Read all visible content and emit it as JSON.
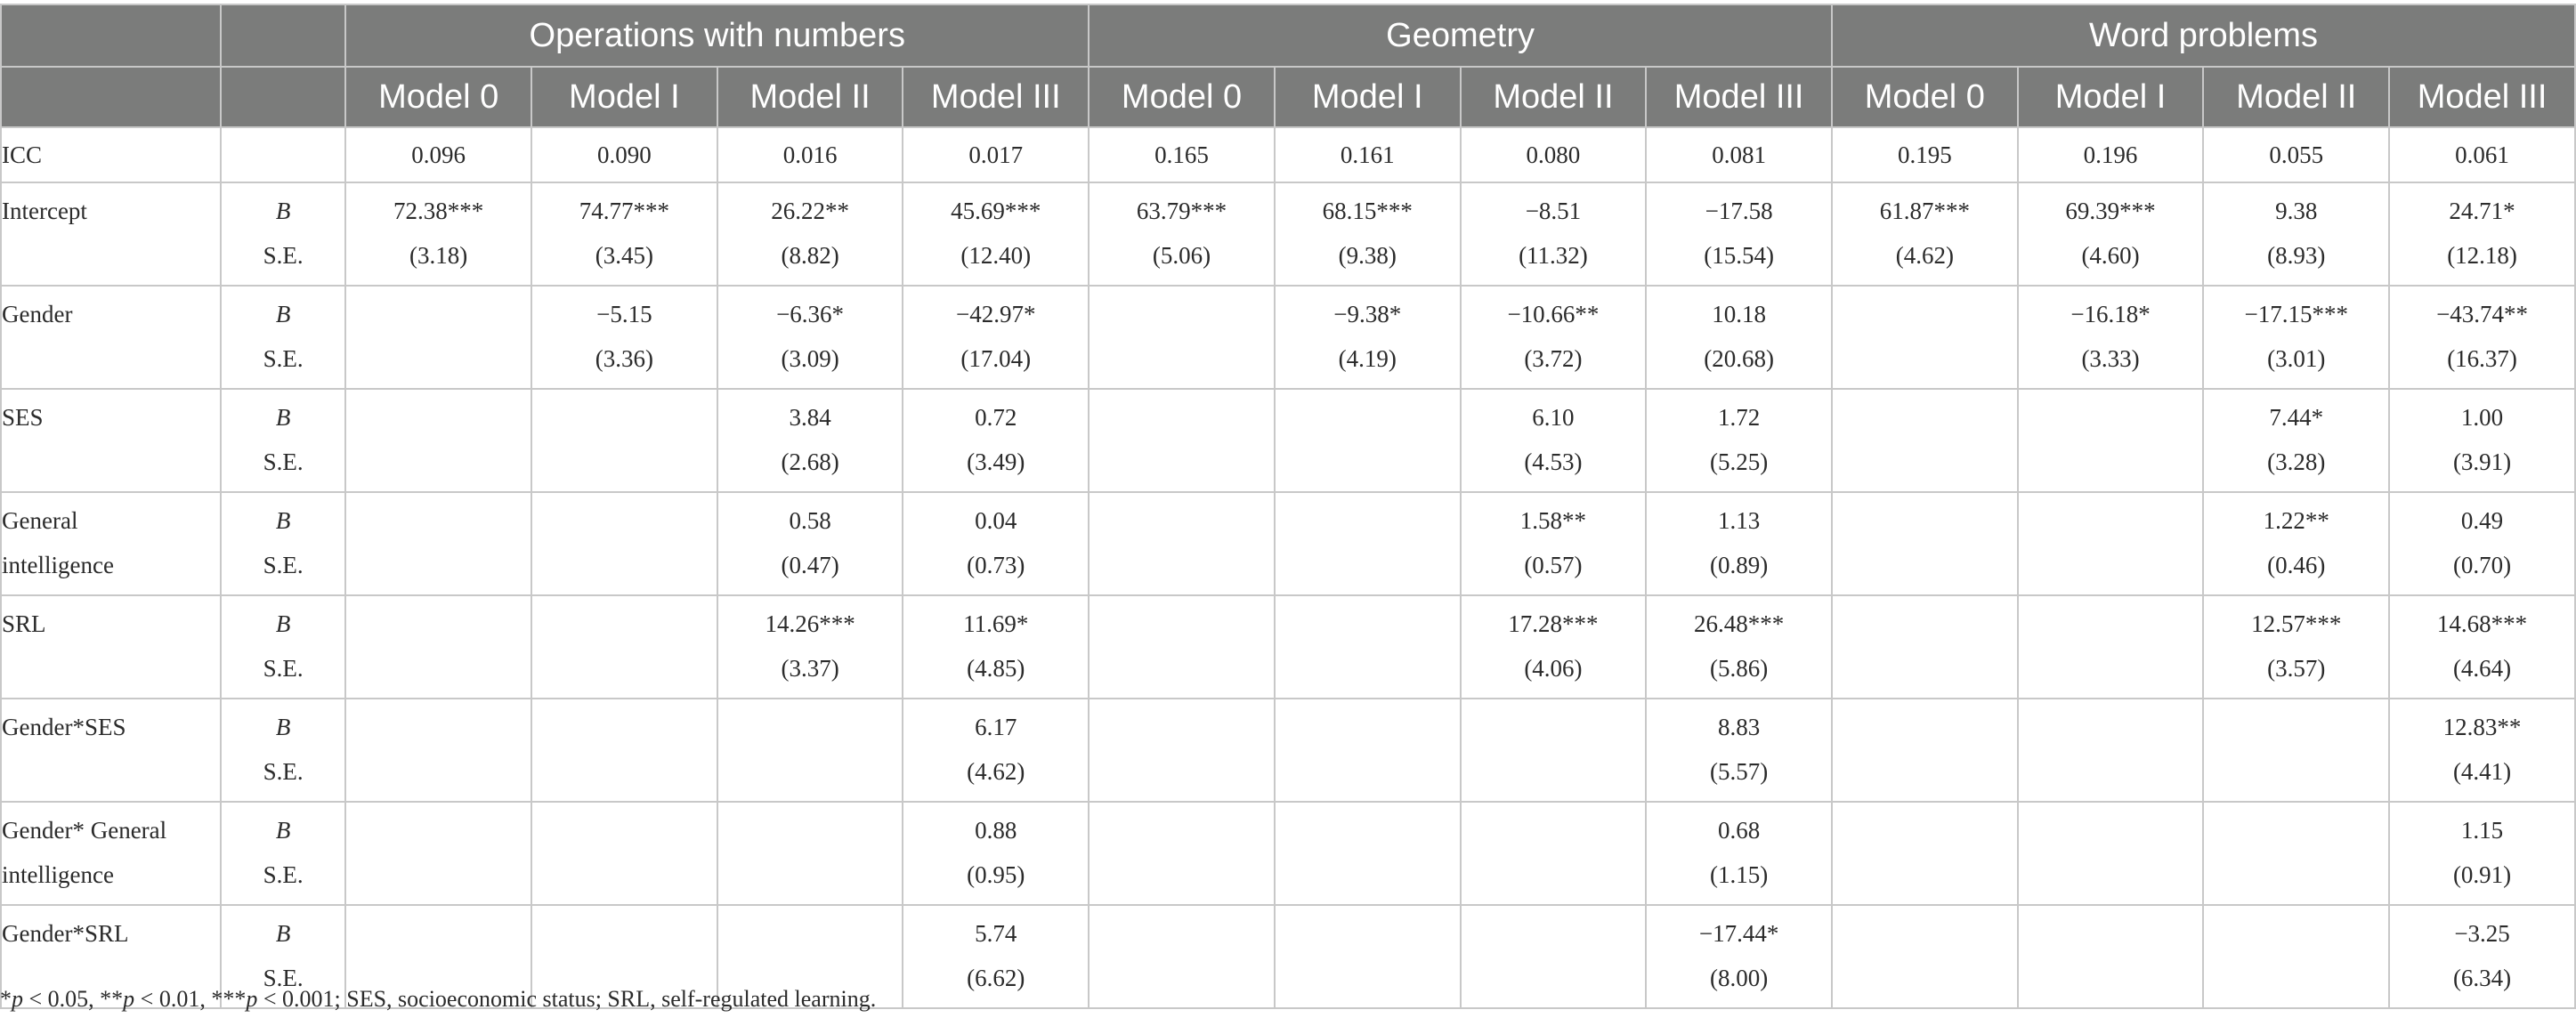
{
  "groups": [
    "Operations with numbers",
    "Geometry",
    "Word problems"
  ],
  "models": [
    "Model 0",
    "Model I",
    "Model II",
    "Model III",
    "Model 0",
    "Model I",
    "Model II",
    "Model III",
    "Model 0",
    "Model I",
    "Model II",
    "Model III"
  ],
  "stat_labels": {
    "b": "B",
    "se": "S.E."
  },
  "rows": [
    {
      "label": "ICC",
      "values": [
        "0.096",
        "0.090",
        "0.016",
        "0.017",
        "0.165",
        "0.161",
        "0.080",
        "0.081",
        "0.195",
        "0.196",
        "0.055",
        "0.061"
      ]
    },
    {
      "label_lines": [
        "Intercept",
        ""
      ],
      "b": [
        "72.38***",
        "74.77***",
        "26.22**",
        "45.69***",
        "63.79***",
        "68.15***",
        "−8.51",
        "−17.58",
        "61.87***",
        "69.39***",
        "9.38",
        "24.71*"
      ],
      "se": [
        "(3.18)",
        "(3.45)",
        "(8.82)",
        "(12.40)",
        "(5.06)",
        "(9.38)",
        "(11.32)",
        "(15.54)",
        "(4.62)",
        "(4.60)",
        "(8.93)",
        "(12.18)"
      ]
    },
    {
      "label_lines": [
        "Gender",
        ""
      ],
      "b": [
        "",
        "−5.15",
        "−6.36*",
        "−42.97*",
        "",
        "−9.38*",
        "−10.66**",
        "10.18",
        "",
        "−16.18*",
        "−17.15***",
        "−43.74**"
      ],
      "se": [
        "",
        "(3.36)",
        "(3.09)",
        "(17.04)",
        "",
        "(4.19)",
        "(3.72)",
        "(20.68)",
        "",
        "(3.33)",
        "(3.01)",
        "(16.37)"
      ]
    },
    {
      "label_lines": [
        "SES",
        ""
      ],
      "b": [
        "",
        "",
        "3.84",
        "0.72",
        "",
        "",
        "6.10",
        "1.72",
        "",
        "",
        "7.44*",
        "1.00"
      ],
      "se": [
        "",
        "",
        "(2.68)",
        "(3.49)",
        "",
        "",
        "(4.53)",
        "(5.25)",
        "",
        "",
        "(3.28)",
        "(3.91)"
      ]
    },
    {
      "label_lines": [
        "General",
        "intelligence"
      ],
      "b": [
        "",
        "",
        "0.58",
        "0.04",
        "",
        "",
        "1.58**",
        "1.13",
        "",
        "",
        "1.22**",
        "0.49"
      ],
      "se": [
        "",
        "",
        "(0.47)",
        "(0.73)",
        "",
        "",
        "(0.57)",
        "(0.89)",
        "",
        "",
        "(0.46)",
        "(0.70)"
      ]
    },
    {
      "label_lines": [
        "SRL",
        ""
      ],
      "b": [
        "",
        "",
        "14.26***",
        "11.69*",
        "",
        "",
        "17.28***",
        "26.48***",
        "",
        "",
        "12.57***",
        "14.68***"
      ],
      "se": [
        "",
        "",
        "(3.37)",
        "(4.85)",
        "",
        "",
        "(4.06)",
        "(5.86)",
        "",
        "",
        "(3.57)",
        "(4.64)"
      ]
    },
    {
      "label_lines": [
        "Gender*SES",
        ""
      ],
      "b": [
        "",
        "",
        "",
        "6.17",
        "",
        "",
        "",
        "8.83",
        "",
        "",
        "",
        "12.83**"
      ],
      "se": [
        "",
        "",
        "",
        "(4.62)",
        "",
        "",
        "",
        "(5.57)",
        "",
        "",
        "",
        "(4.41)"
      ]
    },
    {
      "label_lines": [
        "Gender* General",
        "intelligence"
      ],
      "b": [
        "",
        "",
        "",
        "0.88",
        "",
        "",
        "",
        "0.68",
        "",
        "",
        "",
        "1.15"
      ],
      "se": [
        "",
        "",
        "",
        "(0.95)",
        "",
        "",
        "",
        "(1.15)",
        "",
        "",
        "",
        "(0.91)"
      ]
    },
    {
      "label_lines": [
        "Gender*SRL",
        ""
      ],
      "b": [
        "",
        "",
        "",
        "5.74",
        "",
        "",
        "",
        "−17.44*",
        "",
        "",
        "",
        "−3.25"
      ],
      "se": [
        "",
        "",
        "",
        "(6.62)",
        "",
        "",
        "",
        "(8.00)",
        "",
        "",
        "",
        "(6.34)"
      ]
    }
  ],
  "footnote": {
    "p": "p",
    "part1": " < 0.05, **",
    "part2": " < 0.01, ***",
    "part3": " < 0.001; SES, socioeconomic status; SRL, self-regulated learning.",
    "star": "*"
  }
}
